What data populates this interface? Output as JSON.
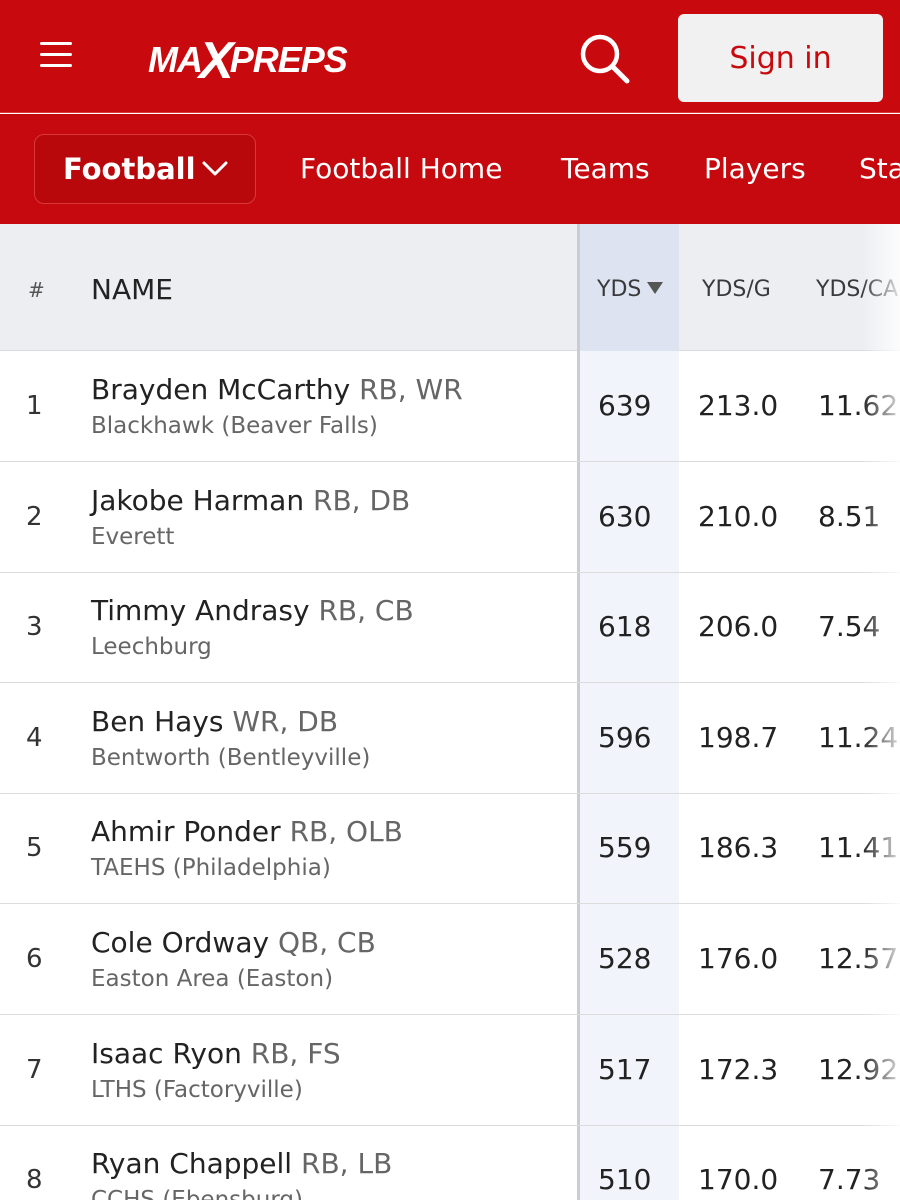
{
  "header": {
    "logo_text_left": "MA",
    "logo_text_x": "X",
    "logo_text_right": "PREPS",
    "signin_label": "Sign in",
    "brand_color": "#c8090d"
  },
  "subnav": {
    "sport_label": "Football",
    "links": [
      "Football Home",
      "Teams",
      "Players",
      "Sta"
    ]
  },
  "table": {
    "columns": {
      "rank": "#",
      "name": "NAME",
      "yds": "YDS",
      "ydsg": "YDS/G",
      "ydsc": "YDS/CA"
    },
    "sorted_by": "YDS",
    "sort_direction": "descending",
    "rows": [
      {
        "rank": "1",
        "name": "Brayden McCarthy",
        "pos": "RB, WR",
        "school": "Blackhawk (Beaver Falls)",
        "yds": "639",
        "ydsg": "213.0",
        "ydsc": "11.62"
      },
      {
        "rank": "2",
        "name": "Jakobe Harman",
        "pos": "RB, DB",
        "school": "Everett",
        "yds": "630",
        "ydsg": "210.0",
        "ydsc": "8.51"
      },
      {
        "rank": "3",
        "name": "Timmy Andrasy",
        "pos": "RB, CB",
        "school": "Leechburg",
        "yds": "618",
        "ydsg": "206.0",
        "ydsc": "7.54"
      },
      {
        "rank": "4",
        "name": "Ben Hays",
        "pos": "WR, DB",
        "school": "Bentworth (Bentleyville)",
        "yds": "596",
        "ydsg": "198.7",
        "ydsc": "11.24"
      },
      {
        "rank": "5",
        "name": "Ahmir Ponder",
        "pos": "RB, OLB",
        "school": "TAEHS (Philadelphia)",
        "yds": "559",
        "ydsg": "186.3",
        "ydsc": "11.41"
      },
      {
        "rank": "6",
        "name": "Cole Ordway",
        "pos": "QB, CB",
        "school": "Easton Area (Easton)",
        "yds": "528",
        "ydsg": "176.0",
        "ydsc": "12.57"
      },
      {
        "rank": "7",
        "name": "Isaac Ryon",
        "pos": "RB, FS",
        "school": "LTHS (Factoryville)",
        "yds": "517",
        "ydsg": "172.3",
        "ydsc": "12.92"
      },
      {
        "rank": "8",
        "name": "Ryan Chappell",
        "pos": "RB, LB",
        "school": "CCHS (Ebensburg)",
        "yds": "510",
        "ydsg": "170.0",
        "ydsc": "7.73"
      }
    ]
  }
}
